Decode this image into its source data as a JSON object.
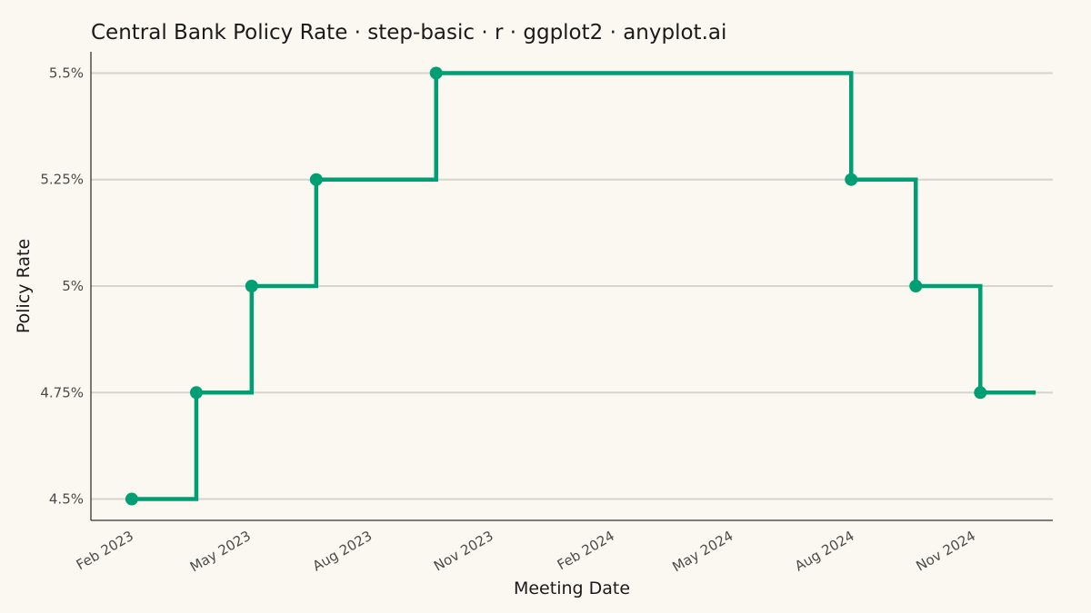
{
  "chart_data": {
    "type": "line",
    "subtype": "step",
    "title": "Central Bank Policy Rate · step-basic · r · ggplot2 · anyplot.ai",
    "xlabel": "Meeting Date",
    "ylabel": "Policy Rate",
    "x_axis": {
      "type": "date",
      "range": [
        "2023-01-01",
        "2024-12-31"
      ],
      "ticks": [
        {
          "date": "2023-02-01",
          "label": "Feb 2023"
        },
        {
          "date": "2023-05-01",
          "label": "May 2023"
        },
        {
          "date": "2023-08-01",
          "label": "Aug 2023"
        },
        {
          "date": "2023-11-01",
          "label": "Nov 2023"
        },
        {
          "date": "2024-02-01",
          "label": "Feb 2024"
        },
        {
          "date": "2024-05-01",
          "label": "May 2024"
        },
        {
          "date": "2024-08-01",
          "label": "Aug 2024"
        },
        {
          "date": "2024-11-01",
          "label": "Nov 2024"
        }
      ],
      "tick_label_angle": -30
    },
    "y_axis": {
      "range": [
        4.45,
        5.55
      ],
      "ticks": [
        {
          "value": 4.5,
          "label": "4.5%"
        },
        {
          "value": 4.75,
          "label": "4.75%"
        },
        {
          "value": 5.0,
          "label": "5%"
        },
        {
          "value": 5.25,
          "label": "5.25%"
        },
        {
          "value": 5.5,
          "label": "5.5%"
        }
      ]
    },
    "grid": {
      "horizontal": true,
      "vertical": false
    },
    "step_direction": "hv",
    "line_end": "2024-12-18",
    "series": [
      {
        "color": "#009E73",
        "points": [
          {
            "x": "2023-02-01",
            "y": 4.5
          },
          {
            "x": "2023-03-22",
            "y": 4.75
          },
          {
            "x": "2023-05-03",
            "y": 5.0
          },
          {
            "x": "2023-06-21",
            "y": 5.25
          },
          {
            "x": "2023-09-20",
            "y": 5.5
          },
          {
            "x": "2024-07-31",
            "y": 5.25
          },
          {
            "x": "2024-09-18",
            "y": 5.0
          },
          {
            "x": "2024-11-06",
            "y": 4.75
          }
        ]
      }
    ]
  }
}
